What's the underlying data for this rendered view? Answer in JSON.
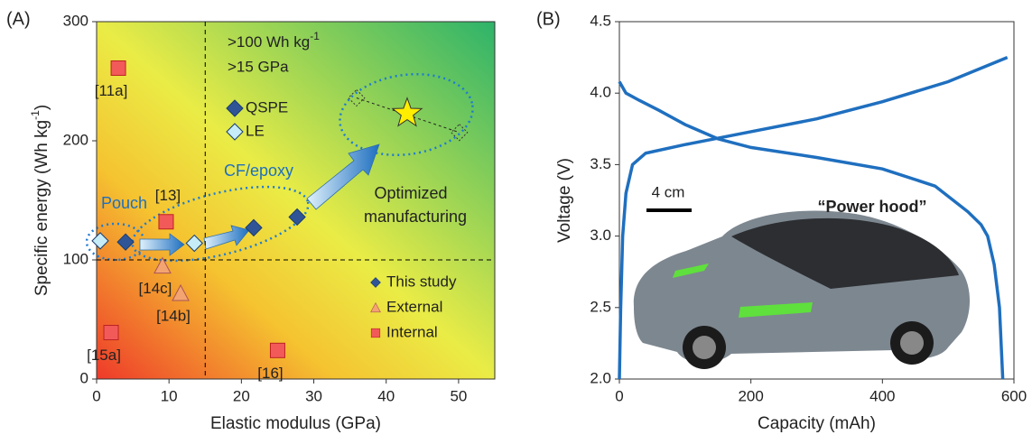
{
  "chart_data": [
    {
      "type": "scatter",
      "panel_label": "(A)",
      "xlabel": "Elastic modulus (GPa)",
      "ylabel": "Specific energy  (Wh kg",
      "ylabel_sup": "-1",
      "ylabel_end": ")",
      "xlim": [
        0,
        55
      ],
      "xticks": [
        0,
        10,
        20,
        30,
        40,
        50
      ],
      "ylim": [
        0,
        300
      ],
      "yticks": [
        0,
        100,
        200,
        300
      ],
      "x_threshold": 15,
      "y_threshold": 100,
      "series": [
        {
          "name": "QSPE",
          "marker": "diamond",
          "color": "#2f5597",
          "x": [
            4,
            21.7,
            27.7
          ],
          "values": [
            115,
            127,
            136
          ]
        },
        {
          "name": "LE",
          "marker": "diamond",
          "color": "#c6ecf8",
          "x": [
            0.5,
            13.5
          ],
          "values": [
            116,
            114
          ]
        },
        {
          "name": "External",
          "marker": "triangle",
          "color": "#f4a470",
          "x": [
            9.1,
            11.6
          ],
          "values": [
            95,
            72
          ],
          "labels": [
            "[14c]",
            "[14b]"
          ]
        },
        {
          "name": "Internal",
          "marker": "square",
          "color": "#f25a5a",
          "x": [
            3,
            9.6,
            2,
            25
          ],
          "values": [
            261,
            132,
            39,
            24
          ],
          "labels": [
            "[11a]",
            "[13]",
            "[15a]",
            "[16]"
          ]
        }
      ],
      "projected": {
        "x": [
          35.9,
          50.1
        ],
        "values": [
          236,
          207
        ]
      },
      "optimum": {
        "x": 42.9,
        "value": 223,
        "color": "#ffee00"
      },
      "this_study": "This study",
      "threshold_energy": ">100 Wh kg",
      "threshold_energy_sup": "-1",
      "threshold_modulus": ">15 GPa",
      "pouch": "Pouch",
      "cf_epoxy": "CF/epoxy",
      "optimized": [
        "Optimized",
        "manufacturing"
      ]
    },
    {
      "type": "line",
      "panel_label": "(B)",
      "xlabel": "Capacity (mAh)",
      "ylabel": "Voltage (V)",
      "xlim": [
        0,
        600
      ],
      "xticks": [
        0,
        200,
        400,
        600
      ],
      "ylim": [
        2,
        4.5
      ],
      "yticks": [
        {
          "value": 2,
          "label": "2.0"
        },
        2.5,
        {
          "value": 3,
          "label": "3.0"
        },
        3.5,
        {
          "value": 4,
          "label": "4.0"
        },
        4.5
      ],
      "series": [
        {
          "color": "#1f6fbf",
          "x": [
            0,
            2,
            5,
            10,
            20,
            40,
            100,
            200,
            300,
            400,
            500,
            590
          ],
          "values": [
            2.0,
            2.5,
            3.0,
            3.3,
            3.5,
            3.58,
            3.64,
            3.73,
            3.82,
            3.94,
            4.08,
            4.25
          ]
        },
        {
          "color": "#1f6fbf",
          "x": [
            0,
            10,
            30,
            60,
            100,
            150,
            200,
            300,
            400,
            480,
            530,
            550,
            560,
            570,
            578,
            583
          ],
          "values": [
            4.08,
            4.0,
            3.95,
            3.88,
            3.78,
            3.68,
            3.62,
            3.55,
            3.47,
            3.35,
            3.17,
            3.08,
            3.0,
            2.8,
            2.5,
            2.0
          ]
        }
      ],
      "scale_bar": "4 cm",
      "nickname": "“Power hood”"
    }
  ]
}
